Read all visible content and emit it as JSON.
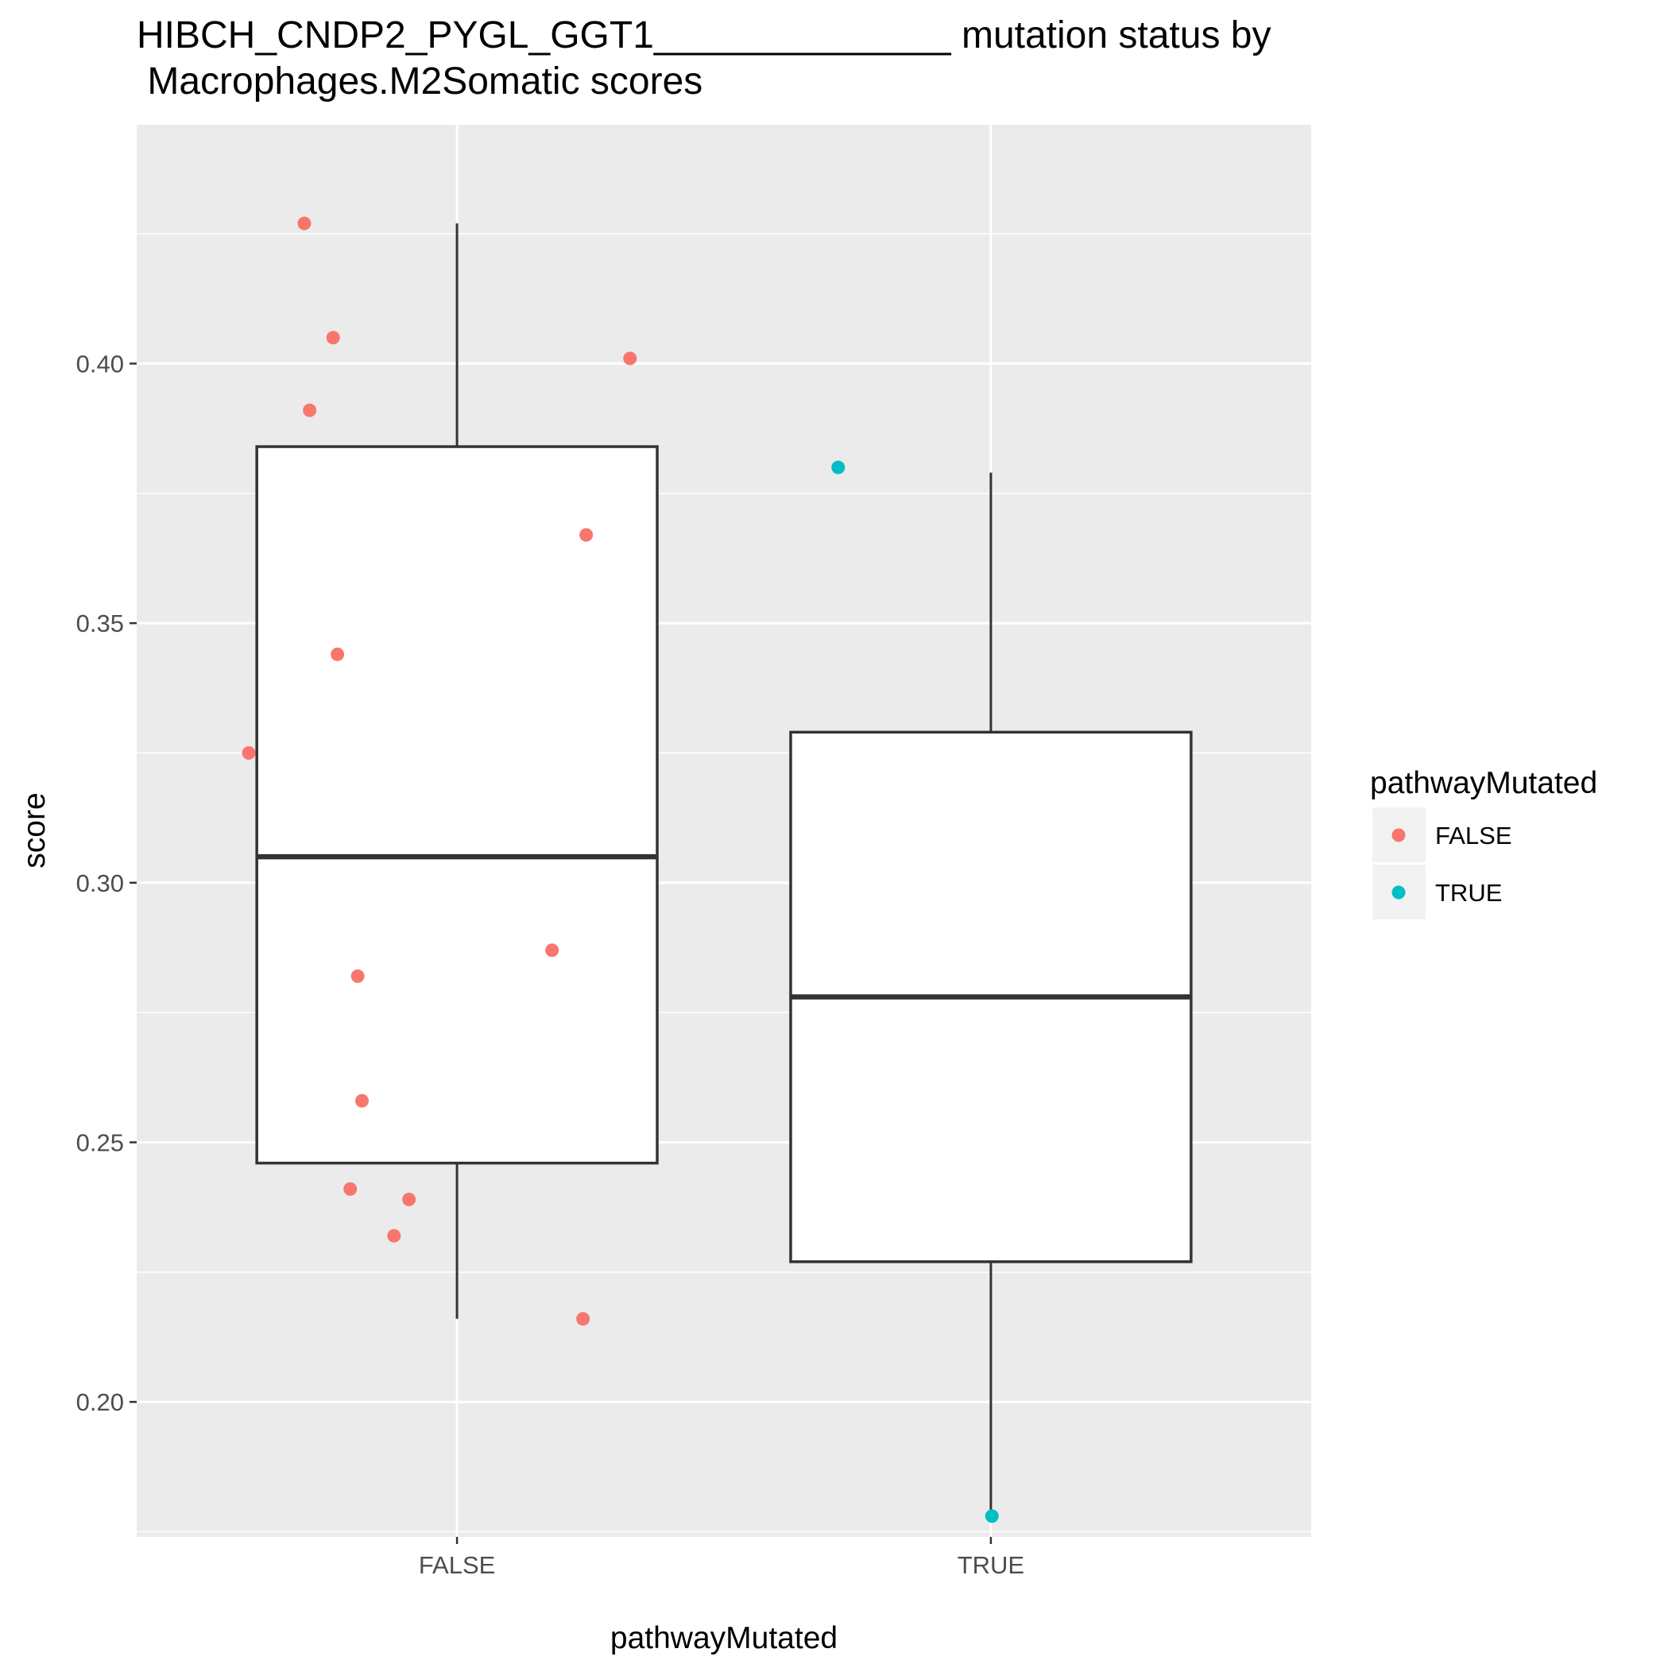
{
  "chart_data": {
    "type": "boxplot",
    "title_lines": [
      "HIBCH_CNDP2_PYGL_GGT1______________ mutation status by",
      " Macrophages.M2Somatic scores"
    ],
    "xlabel": "pathwayMutated",
    "ylabel": "score",
    "categories": [
      "FALSE",
      "TRUE"
    ],
    "ylim": [
      0.174,
      0.446
    ],
    "yticks": [
      0.2,
      0.25,
      0.3,
      0.35,
      0.4
    ],
    "ytick_labels": [
      "0.20",
      "0.25",
      "0.30",
      "0.35",
      "0.40"
    ],
    "boxes": [
      {
        "category": "FALSE",
        "whisker_low": 0.216,
        "q1": 0.246,
        "median": 0.305,
        "q3": 0.384,
        "whisker_high": 0.427
      },
      {
        "category": "TRUE",
        "whisker_low": 0.178,
        "q1": 0.227,
        "median": 0.278,
        "q3": 0.329,
        "whisker_high": 0.379
      }
    ],
    "points": [
      {
        "group": "FALSE",
        "x": 0.714,
        "y": 0.427
      },
      {
        "group": "FALSE",
        "x": 0.768,
        "y": 0.405
      },
      {
        "group": "FALSE",
        "x": 1.324,
        "y": 0.401
      },
      {
        "group": "FALSE",
        "x": 0.724,
        "y": 0.391
      },
      {
        "group": "FALSE",
        "x": 1.242,
        "y": 0.367
      },
      {
        "group": "FALSE",
        "x": 0.776,
        "y": 0.344
      },
      {
        "group": "FALSE",
        "x": 0.61,
        "y": 0.325
      },
      {
        "group": "FALSE",
        "x": 1.178,
        "y": 0.287
      },
      {
        "group": "FALSE",
        "x": 0.814,
        "y": 0.282
      },
      {
        "group": "FALSE",
        "x": 0.822,
        "y": 0.258
      },
      {
        "group": "FALSE",
        "x": 0.8,
        "y": 0.241
      },
      {
        "group": "FALSE",
        "x": 0.91,
        "y": 0.239
      },
      {
        "group": "FALSE",
        "x": 0.882,
        "y": 0.232
      },
      {
        "group": "FALSE",
        "x": 1.236,
        "y": 0.216
      },
      {
        "group": "TRUE",
        "x": 1.714,
        "y": 0.38
      },
      {
        "group": "TRUE",
        "x": 2.002,
        "y": 0.178
      }
    ],
    "legend": {
      "title": "pathwayMutated",
      "position": "right",
      "entries": [
        {
          "label": "FALSE",
          "color": "#F8766D"
        },
        {
          "label": "TRUE",
          "color": "#00BFC4"
        }
      ]
    },
    "grid": true,
    "colors": {
      "panel": "#EBEBEB",
      "grid": "#FFFFFF",
      "box_fill": "#FFFFFF",
      "box_stroke": "#333333",
      "FALSE": "#F8766D",
      "TRUE": "#00BFC4"
    }
  }
}
